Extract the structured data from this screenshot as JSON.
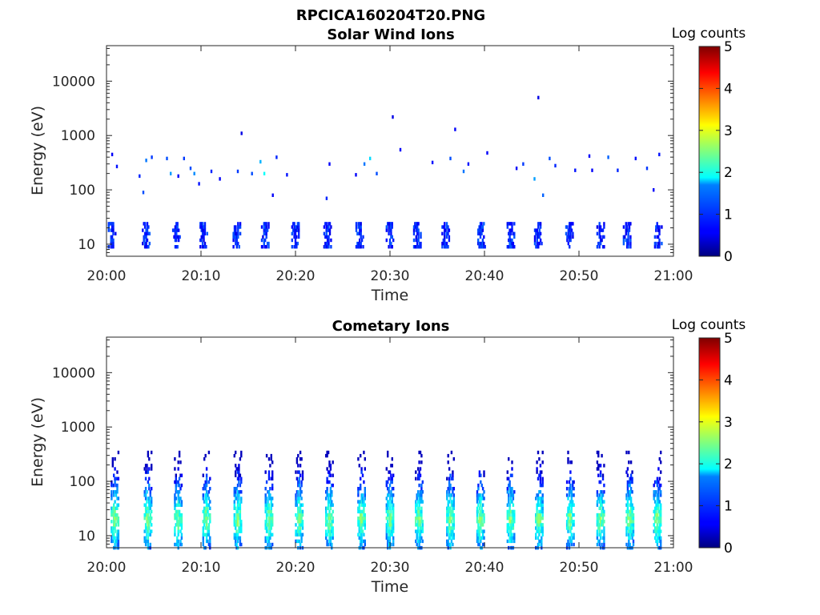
{
  "figure": {
    "title": "RPCICA160204T20.PNG"
  },
  "chart_data": [
    {
      "type": "heatmap",
      "title": "Solar Wind Ions",
      "xlabel": "Time",
      "ylabel": "Energy (eV)",
      "x_ticks": [
        "20:00",
        "20:10",
        "20:20",
        "20:30",
        "20:40",
        "20:50",
        "21:00"
      ],
      "xlim": [
        "20:00",
        "21:00"
      ],
      "y_scale": "log",
      "y_ticks": [
        "10",
        "100",
        "1000",
        "10000"
      ],
      "ylim": [
        6,
        45000
      ],
      "colorbar": {
        "label": "Log counts",
        "ticks": [
          "0",
          "1",
          "2",
          "3",
          "4",
          "5"
        ],
        "range": [
          0,
          5
        ],
        "colormap": "jet"
      },
      "repeating_bursts": {
        "times": [
          "20:00.6",
          "20:04.2",
          "20:07.4",
          "20:10.3",
          "20:13.8",
          "20:16.8",
          "20:20.0",
          "20:23.4",
          "20:26.8",
          "20:30.0",
          "20:32.9",
          "20:35.9",
          "20:39.7",
          "20:42.8",
          "20:45.7",
          "20:49.0",
          "20:52.3",
          "20:55.1",
          "20:58.4"
        ],
        "energy_range_eV": [
          9,
          26
        ],
        "log_counts": 0.8
      },
      "cells": [
        {
          "time": "20:00.6",
          "energy": 450,
          "log_counts": 0.6
        },
        {
          "time": "20:01.1",
          "energy": 270,
          "log_counts": 0.7
        },
        {
          "time": "20:03.5",
          "energy": 180,
          "log_counts": 0.8
        },
        {
          "time": "20:03.9",
          "energy": 90,
          "log_counts": 1.0
        },
        {
          "time": "20:04.2",
          "energy": 350,
          "log_counts": 1.2
        },
        {
          "time": "20:04.8",
          "energy": 400,
          "log_counts": 0.9
        },
        {
          "time": "20:06.4",
          "energy": 380,
          "log_counts": 1.0
        },
        {
          "time": "20:06.8",
          "energy": 200,
          "log_counts": 1.4
        },
        {
          "time": "20:07.6",
          "energy": 180,
          "log_counts": 0.6
        },
        {
          "time": "20:08.2",
          "energy": 380,
          "log_counts": 0.9
        },
        {
          "time": "20:08.9",
          "energy": 250,
          "log_counts": 1.0
        },
        {
          "time": "20:09.3",
          "energy": 200,
          "log_counts": 1.3
        },
        {
          "time": "20:09.8",
          "energy": 130,
          "log_counts": 0.7
        },
        {
          "time": "20:11.1",
          "energy": 220,
          "log_counts": 0.8
        },
        {
          "time": "20:12.0",
          "energy": 160,
          "log_counts": 0.6
        },
        {
          "time": "20:13.9",
          "energy": 220,
          "log_counts": 0.9
        },
        {
          "time": "20:14.3",
          "energy": 1100,
          "log_counts": 0.5
        },
        {
          "time": "20:15.4",
          "energy": 200,
          "log_counts": 1.0
        },
        {
          "time": "20:16.3",
          "energy": 330,
          "log_counts": 1.5
        },
        {
          "time": "20:16.7",
          "energy": 200,
          "log_counts": 1.9
        },
        {
          "time": "20:17.6",
          "energy": 80,
          "log_counts": 0.6
        },
        {
          "time": "20:18.0",
          "energy": 400,
          "log_counts": 0.8
        },
        {
          "time": "20:19.1",
          "energy": 190,
          "log_counts": 0.7
        },
        {
          "time": "20:23.3",
          "energy": 70,
          "log_counts": 0.8
        },
        {
          "time": "20:23.6",
          "energy": 300,
          "log_counts": 0.6
        },
        {
          "time": "20:26.4",
          "energy": 190,
          "log_counts": 0.6
        },
        {
          "time": "20:27.3",
          "energy": 300,
          "log_counts": 1.2
        },
        {
          "time": "20:27.9",
          "energy": 380,
          "log_counts": 1.7
        },
        {
          "time": "20:28.6",
          "energy": 200,
          "log_counts": 1.0
        },
        {
          "time": "20:30.3",
          "energy": 2200,
          "log_counts": 0.5
        },
        {
          "time": "20:31.1",
          "energy": 550,
          "log_counts": 0.6
        },
        {
          "time": "20:34.5",
          "energy": 320,
          "log_counts": 0.7
        },
        {
          "time": "20:36.4",
          "energy": 380,
          "log_counts": 1.0
        },
        {
          "time": "20:36.9",
          "energy": 1300,
          "log_counts": 0.6
        },
        {
          "time": "20:37.8",
          "energy": 220,
          "log_counts": 1.2
        },
        {
          "time": "20:38.3",
          "energy": 300,
          "log_counts": 0.7
        },
        {
          "time": "20:40.3",
          "energy": 480,
          "log_counts": 0.6
        },
        {
          "time": "20:43.4",
          "energy": 250,
          "log_counts": 0.6
        },
        {
          "time": "20:44.1",
          "energy": 300,
          "log_counts": 0.9
        },
        {
          "time": "20:45.3",
          "energy": 160,
          "log_counts": 1.4
        },
        {
          "time": "20:45.7",
          "energy": 5000,
          "log_counts": 0.5
        },
        {
          "time": "20:46.2",
          "energy": 80,
          "log_counts": 1.1
        },
        {
          "time": "20:46.9",
          "energy": 380,
          "log_counts": 1.0
        },
        {
          "time": "20:47.5",
          "energy": 280,
          "log_counts": 0.8
        },
        {
          "time": "20:49.6",
          "energy": 230,
          "log_counts": 0.7
        },
        {
          "time": "20:51.1",
          "energy": 420,
          "log_counts": 0.6
        },
        {
          "time": "20:51.4",
          "energy": 230,
          "log_counts": 0.6
        },
        {
          "time": "20:53.1",
          "energy": 400,
          "log_counts": 1.1
        },
        {
          "time": "20:54.1",
          "energy": 230,
          "log_counts": 0.8
        },
        {
          "time": "20:56.0",
          "energy": 380,
          "log_counts": 0.7
        },
        {
          "time": "20:57.2",
          "energy": 250,
          "log_counts": 0.9
        },
        {
          "time": "20:57.9",
          "energy": 100,
          "log_counts": 0.6
        },
        {
          "time": "20:58.5",
          "energy": 450,
          "log_counts": 0.7
        }
      ]
    },
    {
      "type": "heatmap",
      "title": "Cometary Ions",
      "xlabel": "Time",
      "ylabel": "Energy (eV)",
      "x_ticks": [
        "20:00",
        "20:10",
        "20:20",
        "20:30",
        "20:40",
        "20:50",
        "21:00"
      ],
      "xlim": [
        "20:00",
        "21:00"
      ],
      "y_scale": "log",
      "y_ticks": [
        "10",
        "100",
        "1000",
        "10000"
      ],
      "ylim": [
        6,
        45000
      ],
      "colorbar": {
        "label": "Log counts",
        "ticks": [
          "0",
          "1",
          "2",
          "3",
          "4",
          "5"
        ],
        "range": [
          0,
          5
        ],
        "colormap": "jet"
      },
      "repeating_bursts": {
        "times": [
          "20:00.9",
          "20:04.4",
          "20:07.6",
          "20:10.6",
          "20:13.9",
          "20:17.2",
          "20:20.4",
          "20:23.6",
          "20:27.0",
          "20:30.0",
          "20:33.1",
          "20:36.4",
          "20:39.6",
          "20:42.8",
          "20:45.8",
          "20:49.1",
          "20:52.3",
          "20:55.4",
          "20:58.3"
        ],
        "energy_range_eV": [
          6,
          350
        ],
        "peak_log_counts": 2.6,
        "peak_energy_eV": 20
      }
    }
  ]
}
